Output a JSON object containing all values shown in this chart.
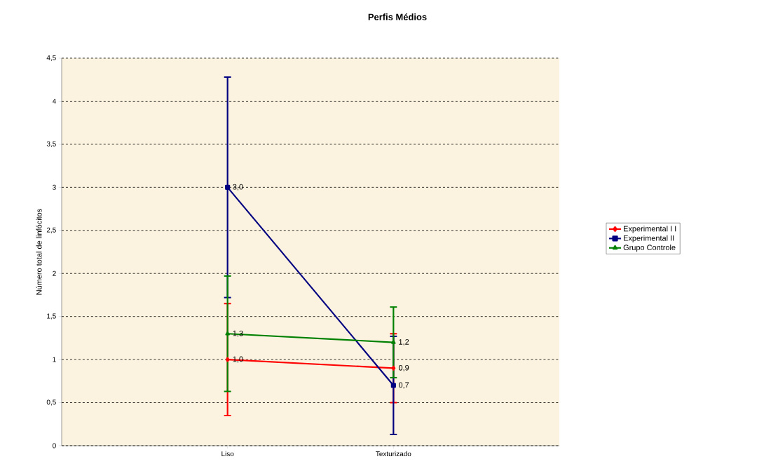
{
  "chart_data": {
    "type": "line",
    "title": "Perfis Médios",
    "ylabel": "Número total de linfócitos",
    "categories": [
      "Liso",
      "Texturizado"
    ],
    "series": [
      {
        "name": "Experimental I I",
        "color": "#ff0000",
        "marker": "diamond",
        "values": [
          1.0,
          0.9
        ],
        "errors": [
          0.65,
          0.4
        ],
        "value_labels": [
          "1,0",
          "0,9"
        ]
      },
      {
        "name": "Experimental II",
        "color": "#000080",
        "marker": "square",
        "values": [
          3.0,
          0.7
        ],
        "errors": [
          1.28,
          0.57
        ],
        "value_labels": [
          "3,0",
          "0,7"
        ]
      },
      {
        "name": "Grupo Controle",
        "color": "#008000",
        "marker": "triangle",
        "values": [
          1.3,
          1.2
        ],
        "errors": [
          0.67,
          0.41
        ],
        "value_labels": [
          "1,3",
          "1,2"
        ]
      }
    ],
    "ylim": [
      0,
      4.5
    ],
    "yticks": [
      0,
      {
        "value": 0.5,
        "label": "0,5"
      },
      1,
      {
        "value": 1.5,
        "label": "1,5"
      },
      2,
      {
        "value": 2.5,
        "label": "2,5"
      },
      3,
      {
        "value": 3.5,
        "label": "3,5"
      },
      4,
      {
        "value": 4.5,
        "label": "4,5"
      }
    ],
    "grid": "y",
    "legend": "right",
    "line_style": "solid"
  }
}
